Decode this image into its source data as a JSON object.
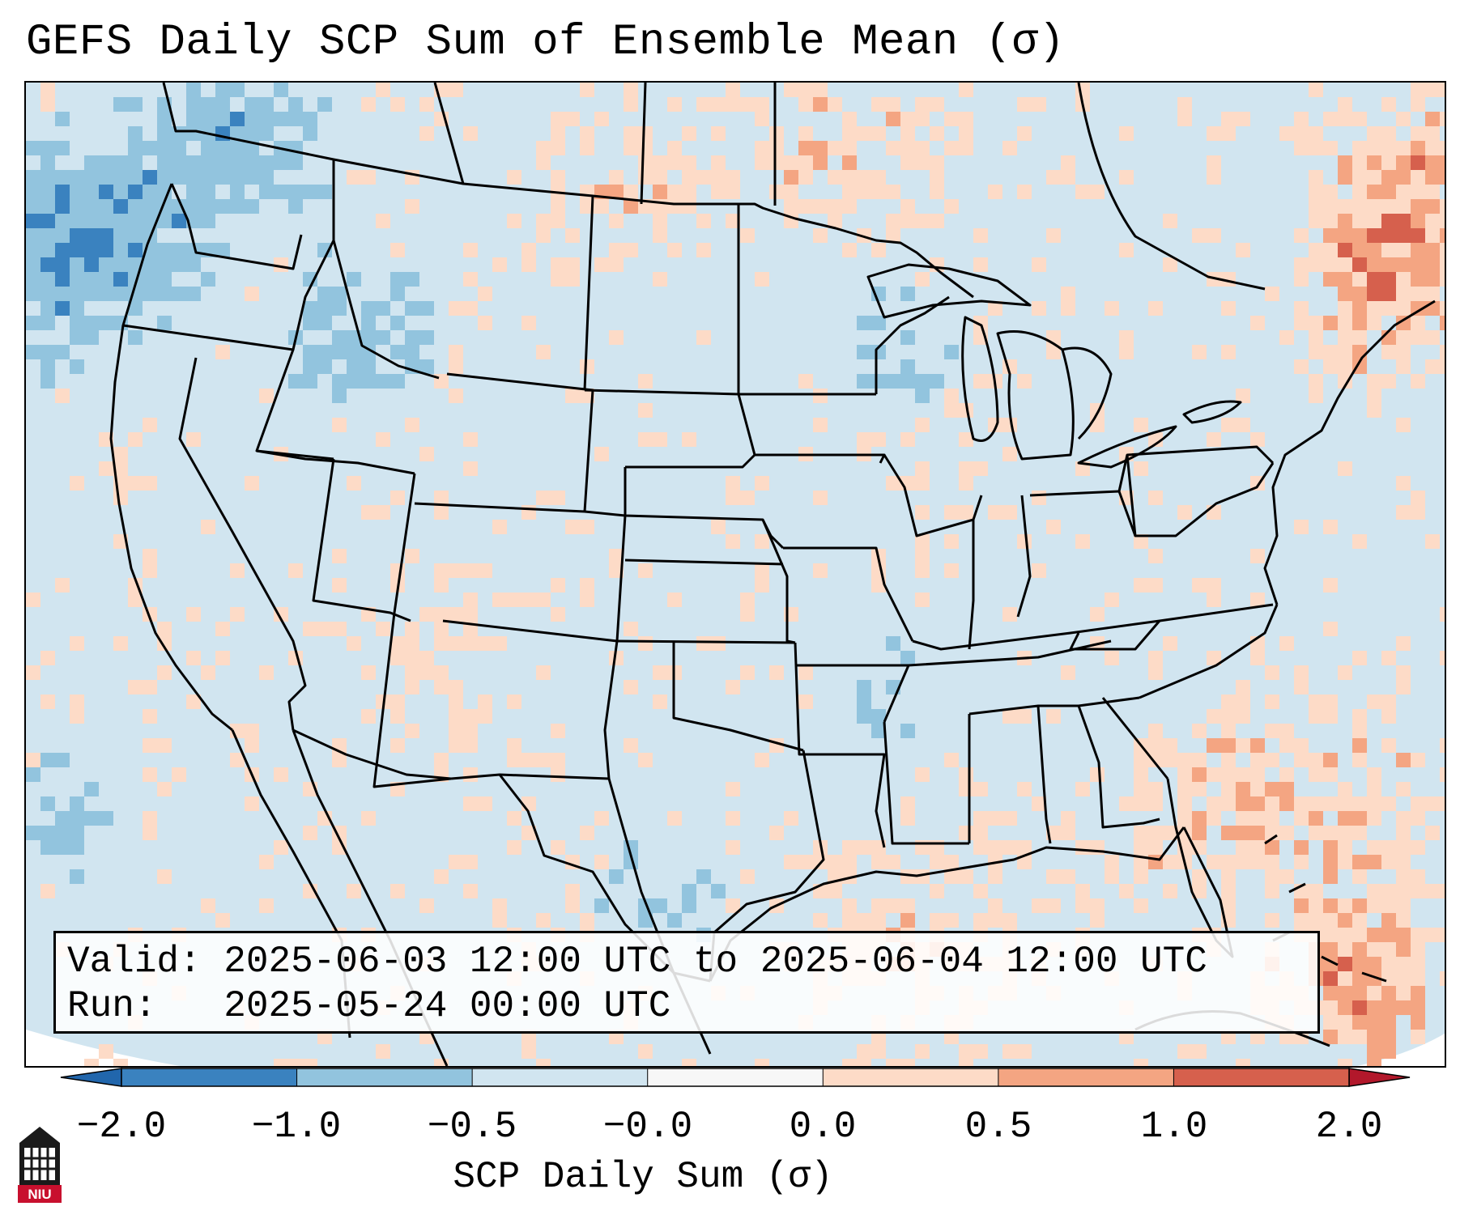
{
  "title": "GEFS Daily SCP Sum of Ensemble Mean (σ)",
  "info": {
    "valid_label": "Valid:",
    "valid_value": "2025-06-03 12:00 UTC to 2025-06-04 12:00 UTC",
    "run_label": "Run:",
    "run_value": "2025-05-24 00:00 UTC"
  },
  "colorbar": {
    "label": "SCP Daily Sum (σ)",
    "ticks": [
      "−2.0",
      "−1.0",
      "−0.5",
      "−0.0",
      "0.0",
      "0.5",
      "1.0",
      "2.0"
    ],
    "colors": [
      "#3a82bf",
      "#92c4de",
      "#d1e5f0",
      "#f7f7f7",
      "#fddbc7",
      "#f4a582",
      "#d6604d"
    ],
    "extend_low_color": "#2166ac",
    "extend_high_color": "#b2182b"
  },
  "logo": {
    "text": "NIU"
  },
  "map_region": "Contiguous United States"
}
